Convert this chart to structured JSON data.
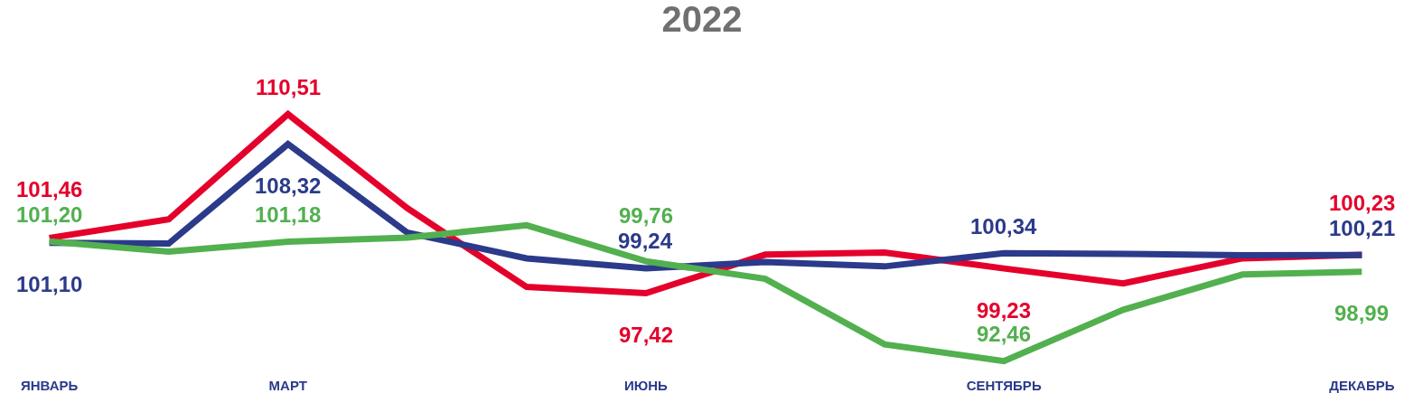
{
  "chart_data": {
    "type": "line",
    "title": "2022",
    "categories": [
      "ЯНВАРЬ",
      null,
      "МАРТ",
      null,
      null,
      "ИЮНЬ",
      null,
      null,
      "СЕНТЯБРЬ",
      null,
      null,
      "ДЕКАБРЬ"
    ],
    "series": [
      {
        "color": "#e4002b",
        "values": [
          101.46,
          102.82,
          110.51,
          103.63,
          97.88,
          97.42,
          100.24,
          100.4,
          99.23,
          98.14,
          99.97,
          100.23
        ],
        "value_labels": [
          "101,46",
          null,
          "110,51",
          null,
          null,
          "97,42",
          null,
          null,
          "99,23",
          null,
          null,
          "100,23"
        ]
      },
      {
        "color": "#2b3a8a",
        "values": [
          101.1,
          101.05,
          108.32,
          101.85,
          99.97,
          99.24,
          99.7,
          99.38,
          100.34,
          100.3,
          100.19,
          100.21
        ],
        "value_labels": [
          "101,10",
          null,
          "108,32",
          null,
          null,
          "99,24",
          null,
          null,
          "100,34",
          null,
          null,
          "100,21"
        ]
      },
      {
        "color": "#52b04f",
        "values": [
          101.2,
          100.46,
          101.18,
          101.48,
          102.39,
          99.76,
          98.47,
          93.68,
          92.46,
          96.21,
          98.79,
          98.99
        ],
        "value_labels": [
          "101,20",
          null,
          "101,18",
          null,
          null,
          "99,76",
          null,
          null,
          "92,46",
          null,
          null,
          "98,99"
        ]
      }
    ],
    "tick_labels": "x",
    "grid": false,
    "marker": "none",
    "line_style": "solid"
  }
}
